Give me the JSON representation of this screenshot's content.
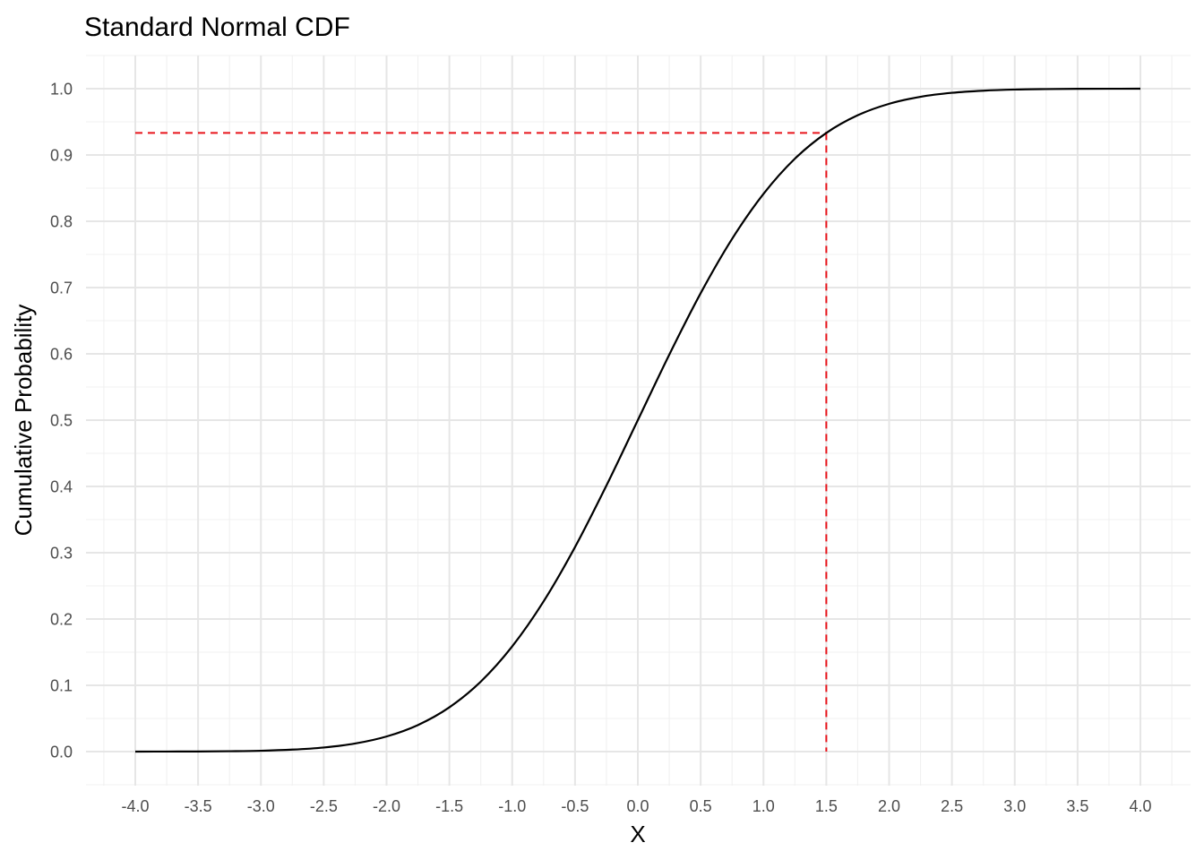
{
  "chart_data": {
    "type": "line",
    "title": "Standard Normal CDF",
    "xlabel": "X",
    "ylabel": "Cumulative Probability",
    "xlim": [
      -4.0,
      4.0
    ],
    "ylim": [
      0.0,
      1.0
    ],
    "x_ticks": [
      -4.0,
      -3.5,
      -3.0,
      -2.5,
      -2.0,
      -1.5,
      -1.0,
      -0.5,
      0.0,
      0.5,
      1.0,
      1.5,
      2.0,
      2.5,
      3.0,
      3.5,
      4.0
    ],
    "x_tick_labels": [
      "-4.0",
      "-3.5",
      "-3.0",
      "-2.5",
      "-2.0",
      "-1.5",
      "-1.0",
      "-0.5",
      "0.0",
      "0.5",
      "1.0",
      "1.5",
      "2.0",
      "2.5",
      "3.0",
      "3.5",
      "4.0"
    ],
    "y_ticks": [
      0.0,
      0.1,
      0.2,
      0.3,
      0.4,
      0.5,
      0.6,
      0.7,
      0.8,
      0.9,
      1.0
    ],
    "y_tick_labels": [
      "0.0",
      "0.1",
      "0.2",
      "0.3",
      "0.4",
      "0.5",
      "0.6",
      "0.7",
      "0.8",
      "0.9",
      "1.0"
    ],
    "grid": true,
    "series": [
      {
        "x": [
          -4.0,
          -3.75,
          -3.5,
          -3.25,
          -3.0,
          -2.75,
          -2.5,
          -2.25,
          -2.0,
          -1.75,
          -1.5,
          -1.25,
          -1.0,
          -0.75,
          -0.5,
          -0.25,
          0.0,
          0.25,
          0.5,
          0.75,
          1.0,
          1.25,
          1.5,
          1.75,
          2.0,
          2.25,
          2.5,
          2.75,
          3.0,
          3.25,
          3.5,
          3.75,
          4.0
        ],
        "y": [
          0.0,
          0.0001,
          0.0002,
          0.0006,
          0.0013,
          0.003,
          0.0062,
          0.0122,
          0.0228,
          0.0401,
          0.0668,
          0.1056,
          0.1587,
          0.2266,
          0.3085,
          0.4013,
          0.5,
          0.5987,
          0.6915,
          0.7734,
          0.8413,
          0.8944,
          0.9332,
          0.9599,
          0.9772,
          0.9878,
          0.9938,
          0.997,
          0.9987,
          0.9994,
          0.9998,
          0.9999,
          1.0
        ],
        "color": "#000000"
      }
    ],
    "reference_lines": {
      "x_value": 1.5,
      "y_value": 0.9332,
      "color": "#e8141b",
      "style": "dashed"
    }
  }
}
